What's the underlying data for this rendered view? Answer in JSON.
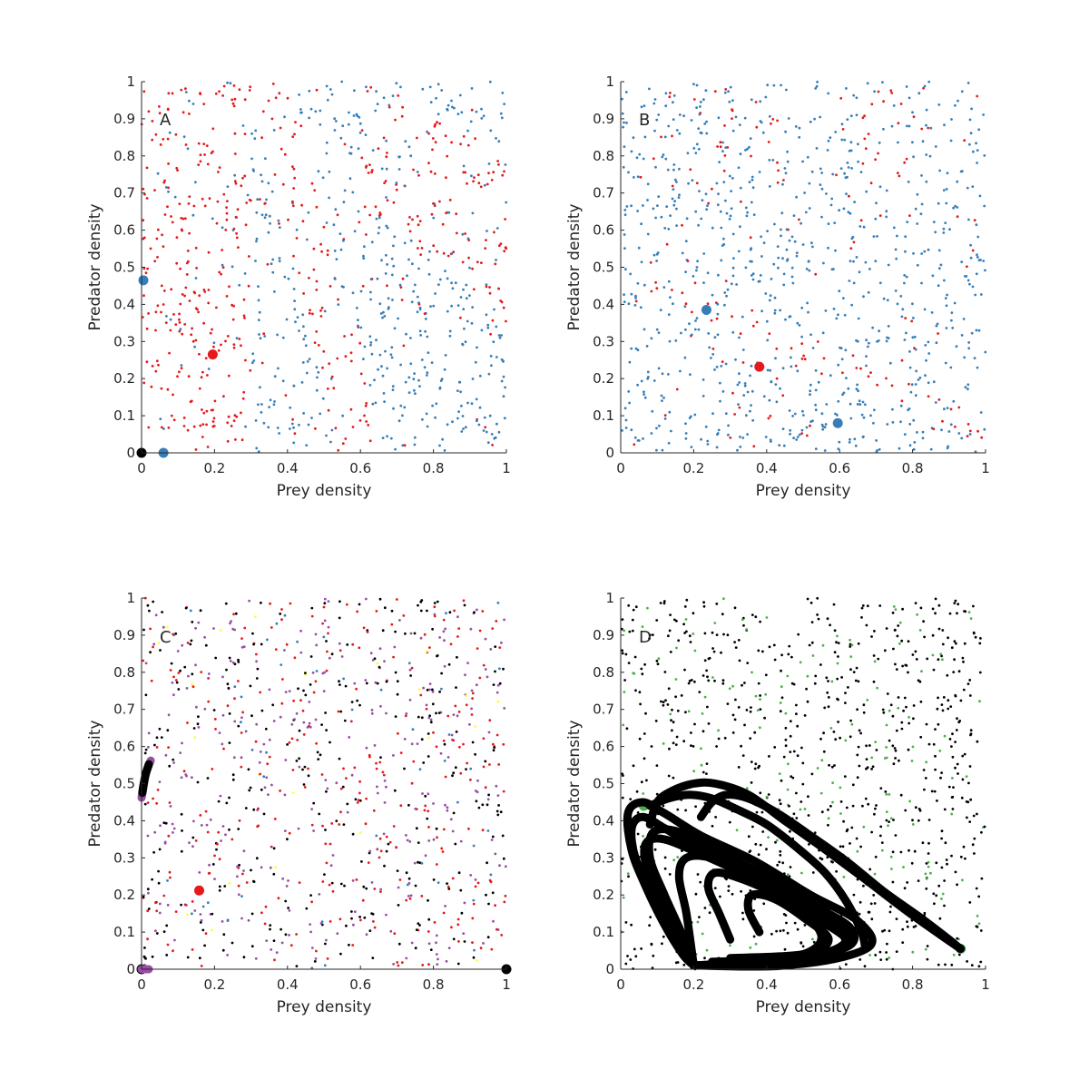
{
  "figure": {
    "background": "#ffffff"
  },
  "colors": {
    "red": "#e41a1c",
    "blue": "#377eb8",
    "black": "#000000",
    "purple": "#984ea3",
    "green": "#4daf4a",
    "yellow": "#ffff33"
  },
  "chart_data": [
    {
      "panel": "A",
      "type": "scatter",
      "xlabel": "Prey density",
      "ylabel": "Predator density",
      "xlim": [
        0,
        1
      ],
      "ylim": [
        0,
        1
      ],
      "xticks": [
        "0",
        "0.2",
        "0.4",
        "0.6",
        "0.8",
        "1"
      ],
      "yticks": [
        "0",
        "0.1",
        "0.2",
        "0.3",
        "0.4",
        "0.5",
        "0.6",
        "0.7",
        "0.8",
        "0.9",
        "1"
      ],
      "grid": false,
      "background_points": {
        "description_basis": "uniform random initial conditions colored by basin of attraction",
        "count": 1000,
        "colors": [
          "red",
          "blue",
          "black"
        ],
        "regions": [
          {
            "color": "red",
            "where": "x < 0.3",
            "prob": 0.85
          },
          {
            "color": "red",
            "where": "diagonal band from (0.35,1.0) to (0.6,0.0)",
            "prob": 0.85
          },
          {
            "color": "red",
            "where": "upper-right wedge y > 1.15 - 0.8x and x > 0.6",
            "prob": 0.75
          },
          {
            "color": "blue",
            "where": "elsewhere",
            "prob": 0.9
          }
        ]
      },
      "attractors": [
        {
          "x": 0.195,
          "y": 0.265,
          "color": "red",
          "kind": "point"
        },
        {
          "x": 0.005,
          "y": 0.465,
          "color": "blue",
          "kind": "point"
        },
        {
          "x": 0.06,
          "y": 0.0,
          "color": "blue",
          "kind": "point"
        },
        {
          "x": 0.0,
          "y": 0.0,
          "color": "black",
          "kind": "point"
        }
      ]
    },
    {
      "panel": "B",
      "type": "scatter",
      "xlabel": "Prey density",
      "ylabel": "Predator density",
      "xlim": [
        0,
        1
      ],
      "ylim": [
        0,
        1
      ],
      "xticks": [
        "0",
        "0.2",
        "0.4",
        "0.6",
        "0.8",
        "1"
      ],
      "yticks": [
        "0",
        "0.1",
        "0.2",
        "0.3",
        "0.4",
        "0.5",
        "0.6",
        "0.7",
        "0.8",
        "0.9",
        "1"
      ],
      "grid": false,
      "background_points": {
        "count": 1000,
        "colors": [
          "blue",
          "red"
        ],
        "regions": [
          {
            "color": "red",
            "where": "band along y = 0.5 - 0.45x",
            "prob": 0.55
          },
          {
            "color": "red",
            "where": "upper band near y 0.75-0.98",
            "prob": 0.3
          },
          {
            "color": "blue",
            "where": "elsewhere",
            "prob": 0.85
          }
        ]
      },
      "attractors": [
        {
          "x": 0.38,
          "y": 0.232,
          "color": "red",
          "kind": "point"
        },
        {
          "x": 0.235,
          "y": 0.385,
          "color": "blue",
          "kind": "point"
        },
        {
          "x": 0.595,
          "y": 0.08,
          "color": "blue",
          "kind": "point"
        }
      ]
    },
    {
      "panel": "C",
      "type": "scatter",
      "xlabel": "Prey density",
      "ylabel": "Predator density",
      "xlim": [
        0,
        1
      ],
      "ylim": [
        0,
        1
      ],
      "xticks": [
        "0",
        "0.2",
        "0.4",
        "0.6",
        "0.8",
        "1"
      ],
      "yticks": [
        "0",
        "0.1",
        "0.2",
        "0.3",
        "0.4",
        "0.5",
        "0.6",
        "0.7",
        "0.8",
        "0.9",
        "1"
      ],
      "grid": false,
      "background_points": {
        "count": 1000,
        "colors": [
          "red",
          "black",
          "purple",
          "blue",
          "yellow"
        ],
        "mix": {
          "red": 0.3,
          "black": 0.33,
          "purple": 0.3,
          "blue": 0.05,
          "yellow": 0.02
        }
      },
      "attractors": [
        {
          "x": 0.158,
          "y": 0.212,
          "color": "red",
          "kind": "point"
        },
        {
          "x": 1.0,
          "y": 0.0,
          "color": "black",
          "kind": "point"
        },
        {
          "x": 0.0,
          "y": 0.0,
          "color": "black",
          "kind": "point"
        },
        {
          "kind": "curve",
          "color": "purple",
          "points": [
            [
              0.0,
              0.462
            ],
            [
              0.005,
              0.49
            ],
            [
              0.01,
              0.52
            ],
            [
              0.018,
              0.545
            ],
            [
              0.025,
              0.562
            ]
          ]
        },
        {
          "kind": "curve",
          "color": "black",
          "points": [
            [
              0.002,
              0.475
            ],
            [
              0.006,
              0.5
            ],
            [
              0.012,
              0.528
            ],
            [
              0.02,
              0.552
            ]
          ]
        },
        {
          "kind": "curve",
          "color": "purple",
          "points": [
            [
              0.0,
              0.0
            ],
            [
              0.02,
              0.0
            ]
          ]
        }
      ]
    },
    {
      "panel": "D",
      "type": "scatter",
      "xlabel": "Prey density",
      "ylabel": "Predator density",
      "xlim": [
        0,
        1
      ],
      "ylim": [
        0,
        1
      ],
      "xticks": [
        "0",
        "0.2",
        "0.4",
        "0.6",
        "0.8",
        "1"
      ],
      "yticks": [
        "0",
        "0.1",
        "0.2",
        "0.3",
        "0.4",
        "0.5",
        "0.6",
        "0.7",
        "0.8",
        "0.9",
        "1"
      ],
      "grid": false,
      "background_points": {
        "count": 1000,
        "colors": [
          "black",
          "green"
        ],
        "mix": {
          "black": 0.8,
          "green": 0.2
        }
      },
      "attractors": [
        {
          "x": 0.063,
          "y": 0.44,
          "color": "green",
          "kind": "point"
        },
        {
          "x": 0.932,
          "y": 0.055,
          "color": "green",
          "kind": "point"
        },
        {
          "kind": "chaotic-attractor",
          "color": "black",
          "loops": [
            {
              "points": [
                [
                  0.2,
                  0.01
                ],
                [
                  0.45,
                  0.01
                ],
                [
                  0.6,
                  0.05
                ],
                [
                  0.6,
                  0.11
                ],
                [
                  0.5,
                  0.18
                ],
                [
                  0.35,
                  0.26
                ],
                [
                  0.22,
                  0.32
                ],
                [
                  0.12,
                  0.38
                ],
                [
                  0.06,
                  0.41
                ],
                [
                  0.03,
                  0.38
                ],
                [
                  0.04,
                  0.3
                ],
                [
                  0.08,
                  0.22
                ],
                [
                  0.13,
                  0.13
                ],
                [
                  0.17,
                  0.05
                ],
                [
                  0.2,
                  0.01
                ]
              ]
            },
            {
              "points": [
                [
                  0.2,
                  0.01
                ],
                [
                  0.5,
                  0.015
                ],
                [
                  0.68,
                  0.06
                ],
                [
                  0.65,
                  0.13
                ],
                [
                  0.52,
                  0.2
                ],
                [
                  0.37,
                  0.29
                ],
                [
                  0.22,
                  0.36
                ],
                [
                  0.12,
                  0.42
                ],
                [
                  0.06,
                  0.45
                ],
                [
                  0.02,
                  0.42
                ],
                [
                  0.03,
                  0.32
                ],
                [
                  0.07,
                  0.22
                ],
                [
                  0.12,
                  0.12
                ],
                [
                  0.17,
                  0.04
                ],
                [
                  0.2,
                  0.01
                ]
              ]
            },
            {
              "points": [
                [
                  0.2,
                  0.01
                ],
                [
                  0.35,
                  0.02
                ],
                [
                  0.5,
                  0.04
                ],
                [
                  0.55,
                  0.09
                ],
                [
                  0.48,
                  0.17
                ],
                [
                  0.35,
                  0.25
                ],
                [
                  0.22,
                  0.31
                ],
                [
                  0.12,
                  0.35
                ],
                [
                  0.07,
                  0.34
                ],
                [
                  0.07,
                  0.28
                ],
                [
                  0.11,
                  0.19
                ],
                [
                  0.15,
                  0.1
                ],
                [
                  0.2,
                  0.01
                ]
              ]
            },
            {
              "points": [
                [
                  0.2,
                  0.01
                ],
                [
                  0.4,
                  0.02
                ],
                [
                  0.58,
                  0.05
                ],
                [
                  0.62,
                  0.1
                ],
                [
                  0.54,
                  0.17
                ],
                [
                  0.4,
                  0.25
                ],
                [
                  0.26,
                  0.32
                ],
                [
                  0.16,
                  0.37
                ],
                [
                  0.09,
                  0.37
                ],
                [
                  0.08,
                  0.3
                ],
                [
                  0.12,
                  0.2
                ],
                [
                  0.17,
                  0.09
                ],
                [
                  0.2,
                  0.01
                ]
              ]
            },
            {
              "points": [
                [
                  0.2,
                  0.01
                ],
                [
                  0.45,
                  0.02
                ],
                [
                  0.62,
                  0.06
                ],
                [
                  0.63,
                  0.11
                ],
                [
                  0.55,
                  0.16
                ],
                [
                  0.45,
                  0.21
                ],
                [
                  0.35,
                  0.26
                ],
                [
                  0.25,
                  0.3
                ],
                [
                  0.18,
                  0.3
                ],
                [
                  0.16,
                  0.25
                ],
                [
                  0.18,
                  0.15
                ],
                [
                  0.2,
                  0.01
                ]
              ]
            },
            {
              "points": [
                [
                  0.25,
                  0.02
                ],
                [
                  0.5,
                  0.03
                ],
                [
                  0.62,
                  0.07
                ],
                [
                  0.55,
                  0.13
                ],
                [
                  0.45,
                  0.19
                ],
                [
                  0.34,
                  0.24
                ],
                [
                  0.26,
                  0.26
                ],
                [
                  0.24,
                  0.22
                ],
                [
                  0.27,
                  0.15
                ],
                [
                  0.3,
                  0.08
                ]
              ]
            },
            {
              "points": [
                [
                  0.3,
                  0.03
                ],
                [
                  0.5,
                  0.04
                ],
                [
                  0.57,
                  0.08
                ],
                [
                  0.5,
                  0.14
                ],
                [
                  0.42,
                  0.19
                ],
                [
                  0.36,
                  0.2
                ],
                [
                  0.35,
                  0.16
                ],
                [
                  0.38,
                  0.1
                ]
              ]
            },
            {
              "points": [
                [
                  0.08,
                  0.39
                ],
                [
                  0.1,
                  0.45
                ],
                [
                  0.14,
                  0.48
                ],
                [
                  0.2,
                  0.5
                ],
                [
                  0.26,
                  0.5
                ],
                [
                  0.35,
                  0.47
                ],
                [
                  0.45,
                  0.4
                ],
                [
                  0.55,
                  0.33
                ],
                [
                  0.66,
                  0.25
                ],
                [
                  0.78,
                  0.16
                ],
                [
                  0.88,
                  0.09
                ],
                [
                  0.932,
                  0.055
                ]
              ]
            },
            {
              "points": [
                [
                  0.22,
                  0.41
                ],
                [
                  0.25,
                  0.45
                ],
                [
                  0.29,
                  0.47
                ],
                [
                  0.35,
                  0.46
                ],
                [
                  0.43,
                  0.42
                ],
                [
                  0.52,
                  0.36
                ],
                [
                  0.62,
                  0.29
                ],
                [
                  0.72,
                  0.21
                ],
                [
                  0.82,
                  0.14
                ],
                [
                  0.9,
                  0.08
                ],
                [
                  0.93,
                  0.055
                ]
              ]
            },
            {
              "points": [
                [
                  0.08,
                  0.44
                ],
                [
                  0.13,
                  0.46
                ],
                [
                  0.19,
                  0.47
                ],
                [
                  0.25,
                  0.46
                ],
                [
                  0.32,
                  0.43
                ],
                [
                  0.4,
                  0.39
                ],
                [
                  0.48,
                  0.33
                ],
                [
                  0.56,
                  0.26
                ],
                [
                  0.62,
                  0.18
                ],
                [
                  0.66,
                  0.1
                ],
                [
                  0.67,
                  0.06
                ]
              ]
            }
          ]
        }
      ]
    }
  ]
}
